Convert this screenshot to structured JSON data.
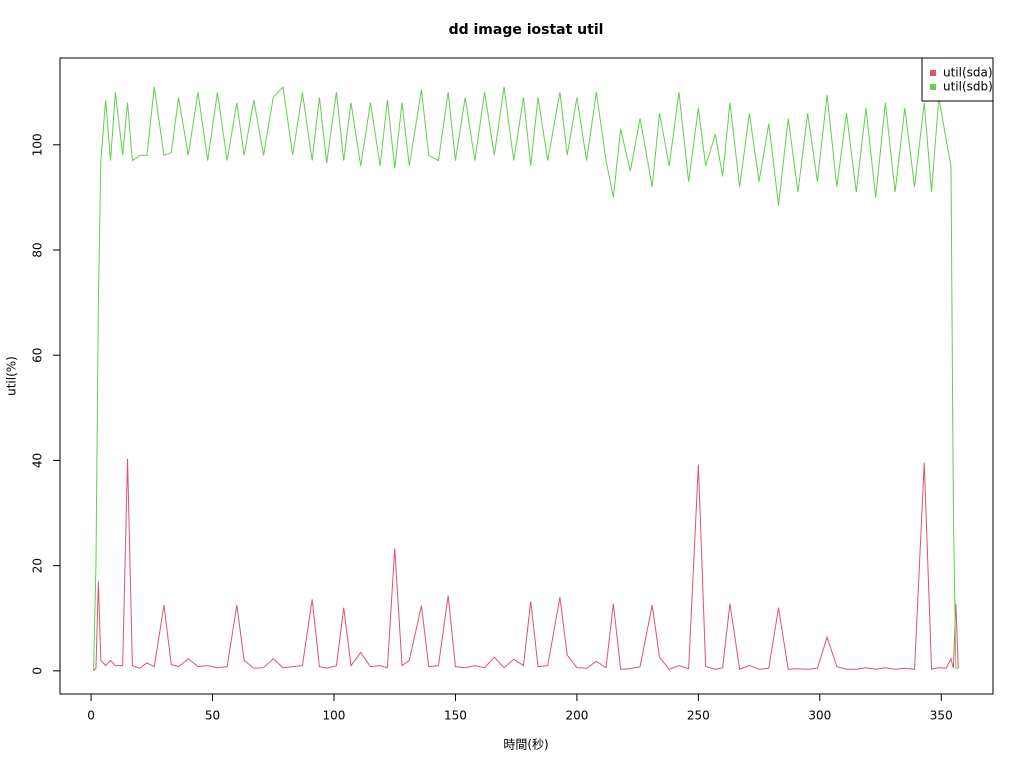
{
  "chart_data": {
    "type": "line",
    "title": "dd image iostat util",
    "xlabel": "時間(秒)",
    "ylabel": "util(%)",
    "x": [
      1,
      2,
      3,
      4,
      6,
      8,
      10,
      13,
      15,
      17,
      20,
      23,
      26,
      30,
      33,
      36,
      40,
      44,
      48,
      52,
      56,
      60,
      63,
      67,
      71,
      75,
      79,
      83,
      87,
      91,
      94,
      97,
      101,
      104,
      107,
      111,
      115,
      119,
      122,
      125,
      128,
      131,
      136,
      139,
      143,
      147,
      150,
      154,
      158,
      162,
      166,
      170,
      174,
      178,
      181,
      184,
      188,
      193,
      196,
      200,
      204,
      208,
      212,
      215,
      218,
      222,
      226,
      231,
      234,
      238,
      242,
      246,
      250,
      253,
      257,
      260,
      263,
      267,
      271,
      275,
      279,
      283,
      287,
      291,
      295,
      299,
      303,
      307,
      311,
      315,
      319,
      323,
      327,
      331,
      335,
      339,
      343,
      346,
      349,
      352,
      354,
      355,
      356,
      357
    ],
    "series": [
      {
        "name": "util(sda)",
        "color": "#DF536B",
        "values": [
          0,
          0.5,
          17,
          2,
          1,
          2,
          1,
          1,
          40.3,
          1,
          0.5,
          1.5,
          0.8,
          12.5,
          1.2,
          0.8,
          2.3,
          0.8,
          1,
          0.6,
          0.8,
          12.5,
          2,
          0.5,
          0.6,
          2.3,
          0.6,
          0.8,
          1,
          13.6,
          0.8,
          0.5,
          1,
          12,
          1,
          3.5,
          0.8,
          1,
          0.6,
          23.3,
          1,
          2,
          12.4,
          0.8,
          1,
          14.3,
          0.8,
          0.6,
          1,
          0.6,
          2.6,
          0.6,
          2.2,
          1,
          13.2,
          0.8,
          1,
          14,
          3,
          0.6,
          0.5,
          1.8,
          0.6,
          12.8,
          0.3,
          0.4,
          0.8,
          12.5,
          2.6,
          0.3,
          1,
          0.4,
          39.2,
          0.8,
          0.3,
          0.6,
          12.8,
          0.3,
          1,
          0.3,
          0.5,
          12,
          0.3,
          0.4,
          0.3,
          0.5,
          6.4,
          0.8,
          0.3,
          0.3,
          0.6,
          0.3,
          0.6,
          0.3,
          0.5,
          0.3,
          39.6,
          0.3,
          0.6,
          0.5,
          2.3,
          0.5,
          12.8,
          0.5
        ]
      },
      {
        "name": "util(sdb)",
        "color": "#61D04F",
        "values": [
          0,
          20,
          70,
          97,
          108.5,
          97,
          110,
          98,
          108,
          97,
          98,
          98,
          111,
          98,
          98.5,
          109,
          98,
          110,
          97,
          110,
          97,
          108,
          98,
          108.5,
          98,
          109,
          111,
          98,
          110,
          97,
          109,
          96.5,
          110,
          97,
          108,
          96,
          108,
          96,
          108.5,
          95.5,
          108,
          96,
          110.5,
          98,
          97,
          110,
          97,
          109,
          97,
          110,
          98,
          111,
          97,
          109,
          96,
          109,
          97,
          110,
          98,
          109,
          97,
          110,
          97,
          90,
          103,
          95,
          105,
          92,
          106,
          96,
          110,
          93,
          107,
          96,
          102,
          94,
          108,
          92,
          106,
          93,
          104,
          88.5,
          105,
          91,
          106,
          93,
          109.5,
          92,
          106,
          91,
          107,
          90,
          108,
          91,
          107,
          92,
          108,
          91,
          109,
          101,
          96,
          30,
          0.5,
          0.5
        ]
      }
    ],
    "xlim": [
      -12.8,
      371.3
    ],
    "ylim": [
      -4.4,
      116.5
    ],
    "xticks": [
      0,
      50,
      100,
      150,
      200,
      250,
      300,
      350
    ],
    "yticks": [
      0,
      20,
      40,
      60,
      80,
      100
    ],
    "legend": "top-right"
  }
}
